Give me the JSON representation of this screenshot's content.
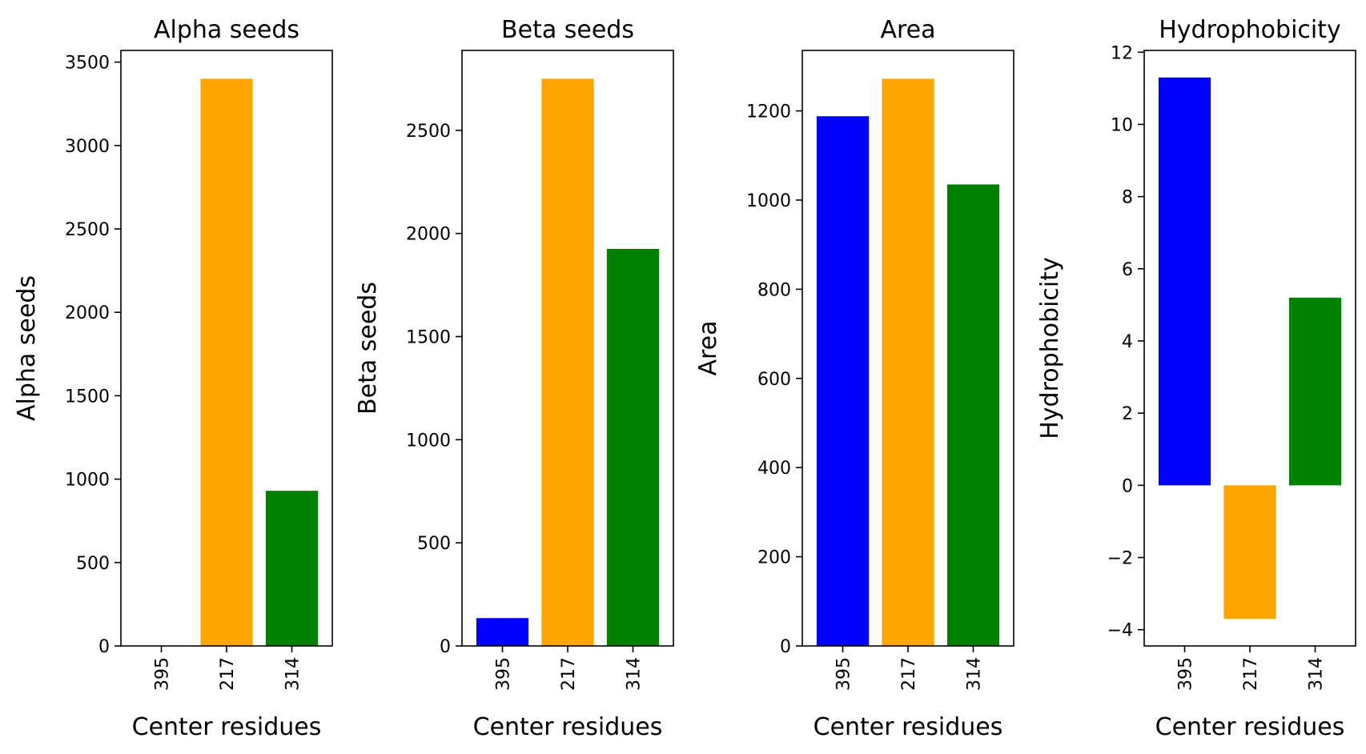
{
  "figure": {
    "bar_colors": [
      "#0000ff",
      "#ffa500",
      "#008000"
    ]
  },
  "chart_data": [
    {
      "type": "bar",
      "title": "Alpha seeds",
      "xlabel": "Center residues",
      "ylabel": "Alpha seeds",
      "categories": [
        "395",
        "217",
        "314"
      ],
      "values": [
        0,
        3400,
        930
      ],
      "ylim": [
        0,
        3570
      ],
      "yticks": [
        0,
        500,
        1000,
        1500,
        2000,
        2500,
        3000,
        3500
      ]
    },
    {
      "type": "bar",
      "title": "Beta seeds",
      "xlabel": "Center residues",
      "ylabel": "Beta seeds",
      "categories": [
        "395",
        "217",
        "314"
      ],
      "values": [
        135,
        2750,
        1925
      ],
      "ylim": [
        0,
        2887.5
      ],
      "yticks": [
        0,
        500,
        1000,
        1500,
        2000,
        2500
      ]
    },
    {
      "type": "bar",
      "title": "Area",
      "xlabel": "Center residues",
      "ylabel": "Area",
      "categories": [
        "395",
        "217",
        "314"
      ],
      "values": [
        1188,
        1272,
        1035
      ],
      "ylim": [
        0,
        1335.6
      ],
      "yticks": [
        0,
        200,
        400,
        600,
        800,
        1000,
        1200
      ]
    },
    {
      "type": "bar",
      "title": "Hydrophobicity",
      "xlabel": "Center residues",
      "ylabel": "Hydrophobicity",
      "categories": [
        "395",
        "217",
        "314"
      ],
      "values": [
        11.3,
        -3.7,
        5.2
      ],
      "ylim": [
        -4.45,
        12.05
      ],
      "yticks": [
        -4,
        -2,
        0,
        2,
        4,
        6,
        8,
        10,
        12
      ],
      "ytick_labels": [
        "−4",
        "−2",
        "0",
        "2",
        "4",
        "6",
        "8",
        "10",
        "12"
      ]
    }
  ]
}
